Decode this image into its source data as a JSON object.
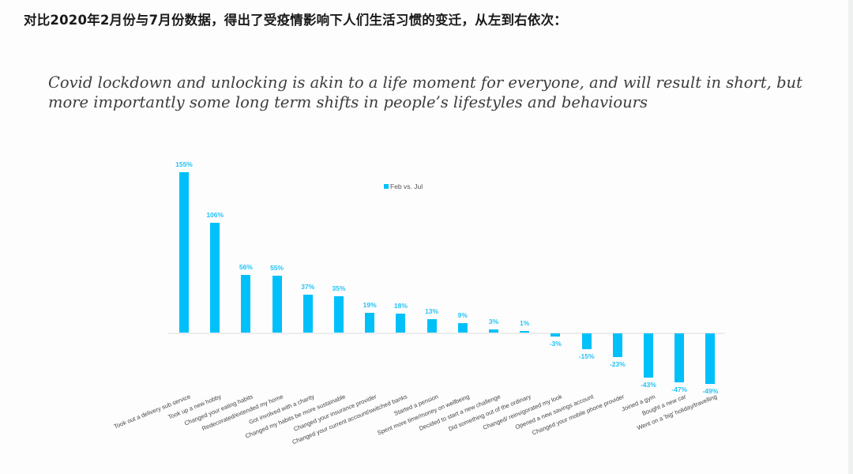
{
  "header": {
    "title_cn": "对比2020年2月份与7月份数据，得出了受疫情影响下人们生活习惯的变迁，从左到右依次："
  },
  "slide": {
    "subtitle": "Covid lockdown and unlocking is akin to a life moment for everyone, and will result in short, but more importantly some long term shifts in people’s lifestyles and behaviours"
  },
  "colors": {
    "bar": "#00c0fa",
    "value_label": "#22c3f6",
    "baseline": "#ececec"
  },
  "chart_data": {
    "type": "bar",
    "title": "",
    "xlabel": "",
    "ylabel": "",
    "legend": {
      "entries": [
        "Feb vs. Jul"
      ],
      "position": "top-center"
    },
    "grid": false,
    "ylim": [
      -50,
      160
    ],
    "unit": "%",
    "categories": [
      "Took out a delivery sub service",
      "Took up a new hobby",
      "Changed your eating habits",
      "Redecorated/extended my home",
      "Got involved with a charity",
      "Changed my habits be more sustainable",
      "Changed your insurance provider",
      "Changed your current account/switched banks",
      "Started a pension",
      "Spent more time/money on wellbeing",
      "Decided to start a new challenge",
      "Did something out of the ordinary",
      "Changed/ reinvigorated my look",
      "Opened a new savings account",
      "Changed your mobile phone provider",
      "Joined a gym",
      "Bought a new car",
      "Went on a 'big' holiday/travelling"
    ],
    "series": [
      {
        "name": "Feb vs. Jul",
        "values": [
          155,
          106,
          56,
          55,
          37,
          35,
          19,
          18,
          13,
          9,
          3,
          1,
          -3,
          -15,
          -23,
          -43,
          -47,
          -49
        ],
        "labels": [
          "155%",
          "106%",
          "56%",
          "55%",
          "37%",
          "35%",
          "19%",
          "18%",
          "13%",
          "9%",
          "3%",
          "1%",
          "-3%",
          "-15%",
          "-23%",
          "-43%",
          "-47%",
          "-49%"
        ]
      }
    ]
  }
}
